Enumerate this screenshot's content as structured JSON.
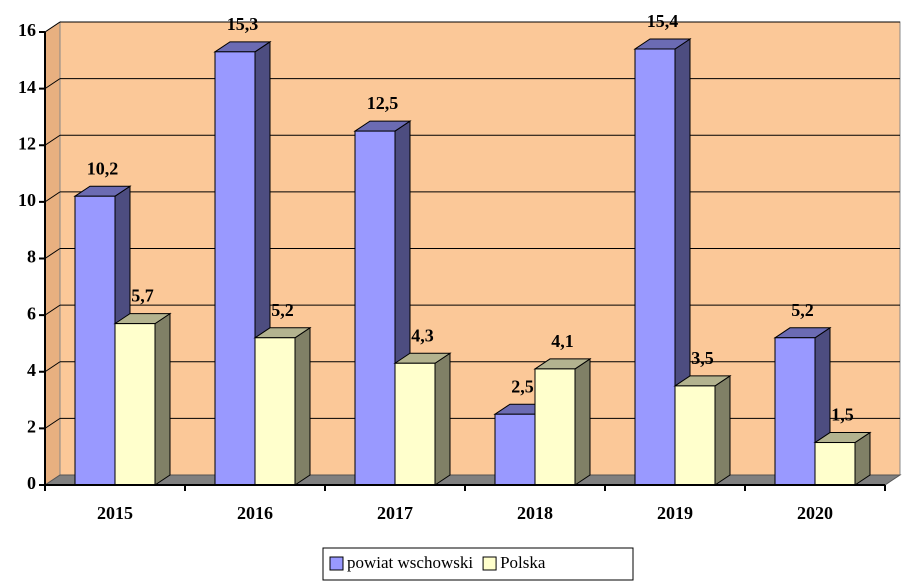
{
  "chart_data": {
    "type": "bar",
    "categories": [
      "2015",
      "2016",
      "2017",
      "2018",
      "2019",
      "2020"
    ],
    "series": [
      {
        "name": "powiat wschowski",
        "color": "#9999ff",
        "values": [
          10.2,
          15.3,
          12.5,
          2.5,
          15.4,
          5.2
        ],
        "value_labels": [
          "10,2",
          "15,3",
          "12,5",
          "2,5",
          "15,4",
          "5,2"
        ]
      },
      {
        "name": "Polska",
        "color": "#ffffcc",
        "values": [
          5.7,
          5.2,
          4.3,
          4.1,
          3.5,
          1.5
        ],
        "value_labels": [
          "5,7",
          "5,2",
          "4,3",
          "4,1",
          "3,5",
          "1,5"
        ]
      }
    ],
    "ylim": [
      0,
      16
    ],
    "yticks": [
      0,
      2,
      4,
      6,
      8,
      10,
      12,
      14,
      16
    ],
    "grid": true,
    "legend": "bottom"
  }
}
